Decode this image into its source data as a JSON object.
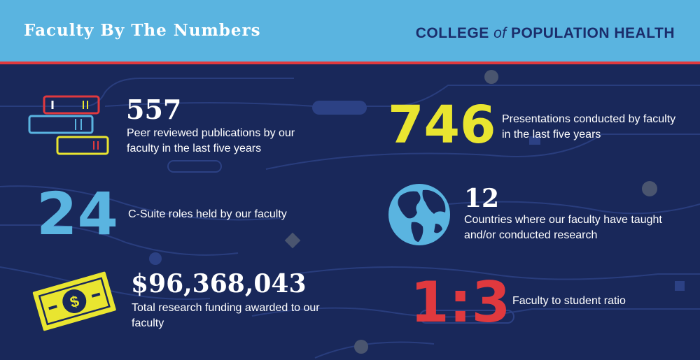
{
  "header": {
    "title": "Faculty By The Numbers",
    "brand_part1": "COLLEGE ",
    "brand_of": "of",
    "brand_part2": " POPULATION HEALTH"
  },
  "stats": {
    "publications": {
      "value": "557",
      "text": "Peer reviewed publications by our faculty in the last five years"
    },
    "presentations": {
      "value": "746",
      "text": "Presentations conducted by faculty in the last five years"
    },
    "csuite": {
      "value": "24",
      "text": "C-Suite roles held by our faculty"
    },
    "countries": {
      "value": "12",
      "text": "Countries where our faculty have taught and/or conducted research"
    },
    "funding": {
      "value": "$96,368,043",
      "text": "Total research funding awarded to our faculty"
    },
    "ratio": {
      "value": "1:3",
      "text": "Faculty to student ratio"
    }
  },
  "icons": {
    "books": "books-icon",
    "globe": "globe-icon",
    "money": "dollar-bill-icon"
  },
  "colors": {
    "background": "#19285a",
    "header": "#5ab4e0",
    "accent_red": "#e0393e",
    "accent_yellow": "#e9e530",
    "accent_blue": "#5ab4e0"
  }
}
